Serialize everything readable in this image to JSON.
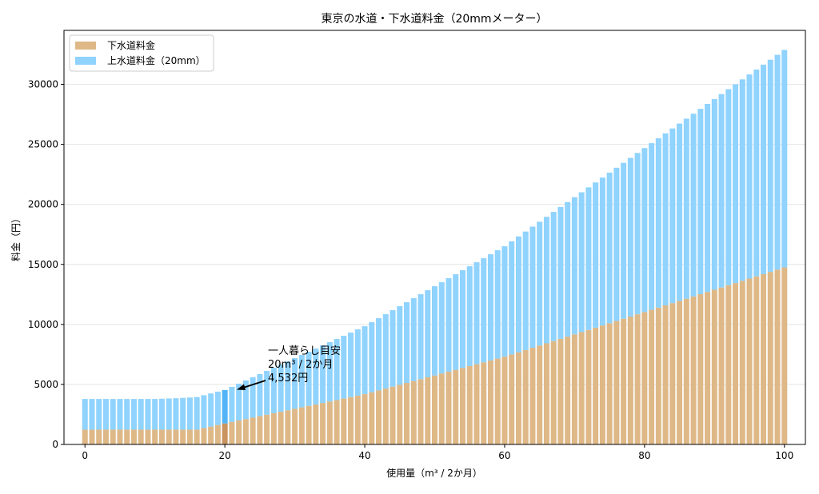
{
  "chart_data": {
    "type": "bar",
    "stacked": true,
    "title": "東京の水道・下水道料金（20mmメーター）",
    "xlabel": "使用量（m³ / 2か月）",
    "ylabel": "料金（円）",
    "xlim": [
      -3,
      103
    ],
    "ylim": [
      0,
      34500
    ],
    "xticks": [
      0,
      20,
      40,
      60,
      80,
      100
    ],
    "yticks": [
      0,
      5000,
      10000,
      15000,
      20000,
      25000,
      30000
    ],
    "grid": "y",
    "legend_position": "top-left",
    "highlight_x": 20,
    "colors": {
      "sewer": "#deb887",
      "water": "#8fd3fe",
      "sewer_highlight": "#c99460",
      "water_highlight": "#52b4f7"
    },
    "x": [
      0,
      1,
      2,
      3,
      4,
      5,
      6,
      7,
      8,
      9,
      10,
      11,
      12,
      13,
      14,
      15,
      16,
      17,
      18,
      19,
      20,
      21,
      22,
      23,
      24,
      25,
      26,
      27,
      28,
      29,
      30,
      31,
      32,
      33,
      34,
      35,
      36,
      37,
      38,
      39,
      40,
      41,
      42,
      43,
      44,
      45,
      46,
      47,
      48,
      49,
      50,
      51,
      52,
      53,
      54,
      55,
      56,
      57,
      58,
      59,
      60,
      61,
      62,
      63,
      64,
      65,
      66,
      67,
      68,
      69,
      70,
      71,
      72,
      73,
      74,
      75,
      76,
      77,
      78,
      79,
      80,
      81,
      82,
      83,
      84,
      85,
      86,
      87,
      88,
      89,
      90,
      91,
      92,
      93,
      94,
      95,
      96,
      97,
      98,
      99,
      100
    ],
    "series": [
      {
        "name": "下水道料金",
        "values": [
          1230,
          1230,
          1230,
          1230,
          1230,
          1230,
          1230,
          1230,
          1230,
          1230,
          1230,
          1230,
          1230,
          1230,
          1230,
          1230,
          1230,
          1360,
          1490,
          1620,
          1750,
          1872,
          1994,
          2116,
          2238,
          2360,
          2482,
          2604,
          2726,
          2848,
          2970,
          3092,
          3214,
          3336,
          3458,
          3580,
          3702,
          3824,
          3946,
          4068,
          4190,
          4346,
          4502,
          4658,
          4814,
          4970,
          5126,
          5282,
          5438,
          5594,
          5750,
          5906,
          6062,
          6218,
          6374,
          6530,
          6686,
          6842,
          6998,
          7154,
          7310,
          7496,
          7682,
          7868,
          8054,
          8240,
          8426,
          8612,
          8798,
          8984,
          9170,
          9356,
          9542,
          9728,
          9914,
          10100,
          10286,
          10472,
          10658,
          10844,
          11030,
          11216,
          11402,
          11588,
          11774,
          11960,
          12146,
          12332,
          12518,
          12704,
          12890,
          13076,
          13262,
          13448,
          13634,
          13820,
          14006,
          14192,
          14378,
          14564,
          14750
        ]
      },
      {
        "name": "上水道料金（20mm）",
        "values": [
          2560,
          2560,
          2560,
          2560,
          2560,
          2560,
          2560,
          2560,
          2560,
          2560,
          2560,
          2580,
          2600,
          2620,
          2650,
          2680,
          2720,
          2740,
          2760,
          2780,
          2782,
          2926,
          3070,
          3214,
          3358,
          3502,
          3646,
          3790,
          3934,
          4078,
          4222,
          4366,
          4510,
          4654,
          4798,
          4942,
          5086,
          5230,
          5374,
          5518,
          5662,
          5839,
          6016,
          6193,
          6370,
          6547,
          6724,
          6901,
          7078,
          7255,
          7432,
          7609,
          7786,
          7963,
          8140,
          8317,
          8494,
          8671,
          8848,
          9025,
          9202,
          9425,
          9648,
          9871,
          10094,
          10317,
          10540,
          10763,
          10986,
          11209,
          11432,
          11655,
          11878,
          12101,
          12324,
          12547,
          12770,
          12993,
          13216,
          13439,
          13662,
          13885,
          14108,
          14331,
          14554,
          14777,
          15000,
          15223,
          15446,
          15669,
          15892,
          16115,
          16338,
          16561,
          16784,
          17007,
          17230,
          17453,
          17676,
          17899,
          18122
        ]
      }
    ],
    "annotation": {
      "lines": [
        "一人暮らし目安",
        "20m³ / 2か月",
        "4,532円"
      ],
      "x": 20,
      "y": 4532
    }
  }
}
